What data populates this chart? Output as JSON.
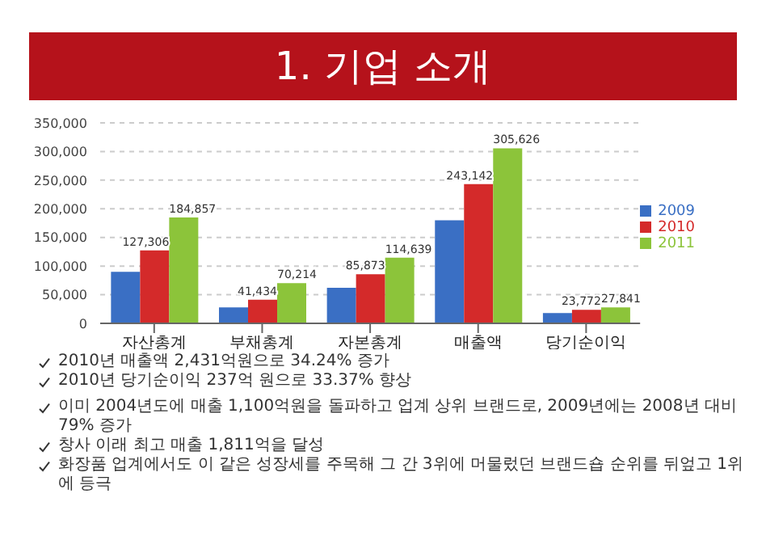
{
  "chart_data": {
    "type": "bar",
    "title": "1. 기업 소개",
    "categories": [
      "자산총계",
      "부채총계",
      "자본총계",
      "매출액",
      "당기순이익"
    ],
    "series": [
      {
        "name": "2009",
        "color": "#3a6fc4",
        "values": [
          90000,
          28000,
          62000,
          180000,
          18000
        ]
      },
      {
        "name": "2010",
        "color": "#d42a2a",
        "values": [
          127306,
          41434,
          85873,
          243142,
          23772
        ],
        "value_labels": [
          "127,306",
          "41,434",
          "85,873",
          "243,142",
          "23,772"
        ]
      },
      {
        "name": "2011",
        "color": "#8cc43a",
        "values": [
          184857,
          70214,
          114639,
          305626,
          27841
        ],
        "value_labels": [
          "184,857",
          "70,214",
          "114,639",
          "305,626",
          "27,841"
        ]
      }
    ],
    "ylim": [
      0,
      350000
    ],
    "yticks": [
      {
        "value": 0,
        "label": "0"
      },
      {
        "value": 50000,
        "label": "50,000"
      },
      {
        "value": 100000,
        "label": "100,000"
      },
      {
        "value": 150000,
        "label": "150,000"
      },
      {
        "value": 200000,
        "label": "200,000"
      },
      {
        "value": 250000,
        "label": "250,000"
      },
      {
        "value": 300000,
        "label": "300,000"
      },
      {
        "value": 350000,
        "label": "350,000"
      }
    ],
    "grid": "y",
    "legend": "right",
    "annotations": [
      "2010년 매출액 2,431억원으로 34.24% 증가",
      "2010년 당기순이익 237억 원으로 33.37% 향상",
      "이미 2004년도에 매출 1,100억원을 돌파하고 업계 상위 브랜드로, 2009년에는 2008년 대비 79% 증가",
      "창사 이래 최고 매출 1,811억을 달성",
      "화장품 업계에서도 이 같은 성장세를 주목해 그 간 3위에 머물렀던 브랜드숍 순위를 뒤엎고 1위에 등극"
    ]
  }
}
